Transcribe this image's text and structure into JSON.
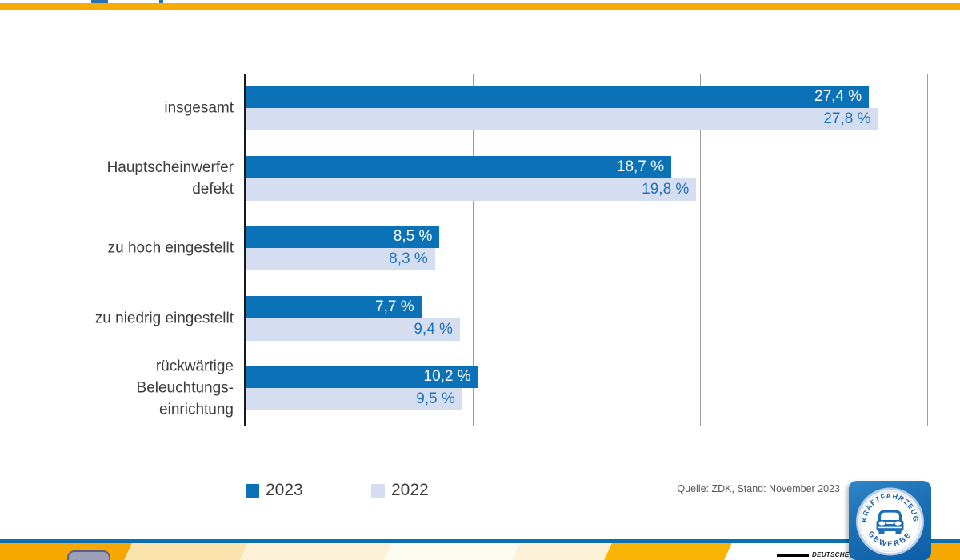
{
  "colors": {
    "series_2023": "#0b72b8",
    "series_2022": "#d5def1",
    "value_text_on_light": "#1d71b8",
    "value_text_on_dark": "#ffffff",
    "category_text": "#3c3c3b",
    "grid": "#9d9d9c",
    "axis": "#1a1a1a",
    "top_bar_yellow": "#f8ab00",
    "footer_blue_line": "#0b6fb4",
    "footer_orange": "#f6a800"
  },
  "chart_data": {
    "type": "bar",
    "orientation": "horizontal",
    "categories": [
      "insgesamt",
      "Hauptscheinwerfer defekt",
      "zu hoch eingestellt",
      "zu niedrig eingestellt",
      "rückwärtige Beleuchtungseinrichtung"
    ],
    "category_lines": [
      [
        "insgesamt"
      ],
      [
        "Hauptscheinwerfer",
        "defekt"
      ],
      [
        "zu hoch eingestellt"
      ],
      [
        "zu niedrig eingestellt"
      ],
      [
        "rückwärtige",
        "Beleuchtungs-",
        "einrichtung"
      ]
    ],
    "series": [
      {
        "name": "2023",
        "color": "#0b72b8",
        "values": [
          27.4,
          18.7,
          8.5,
          7.7,
          10.2
        ],
        "labels": [
          "27,4 %",
          "18,7 %",
          "8,5 %",
          "7,7 %",
          "10,2 %"
        ],
        "label_color": "#ffffff"
      },
      {
        "name": "2022",
        "color": "#d5def1",
        "values": [
          27.8,
          19.8,
          8.3,
          9.4,
          9.5
        ],
        "labels": [
          "27,8 %",
          "19,8 %",
          "8,3 %",
          "9,4 %",
          "9,5 %"
        ],
        "label_color": "#1d71b8"
      }
    ],
    "unit": "%",
    "xlim": [
      0,
      31
    ],
    "gridlines_percent": [
      10,
      20,
      30
    ],
    "grid": true,
    "legend_position": "bottom-left"
  },
  "legend": {
    "items": [
      {
        "label": "2023",
        "color": "#0b72b8"
      },
      {
        "label": "2022",
        "color": "#d5def1"
      }
    ]
  },
  "source": {
    "text": "Quelle: ZDK, Stand: November 2023"
  },
  "badge": {
    "text_top": "KRAFTFAHRZEUG",
    "text_bottom": "GEWERBE"
  },
  "footer": {
    "partner_logo_text": "DEUTSCHE"
  }
}
